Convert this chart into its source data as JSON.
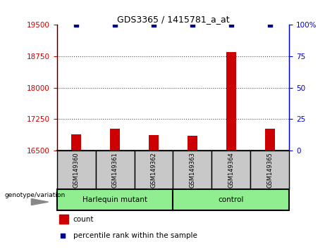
{
  "title": "GDS3365 / 1415781_a_at",
  "samples": [
    "GSM149360",
    "GSM149361",
    "GSM149362",
    "GSM149363",
    "GSM149364",
    "GSM149365"
  ],
  "counts": [
    16890,
    17020,
    16870,
    16860,
    18850,
    17020
  ],
  "percentile_ranks": [
    100,
    100,
    100,
    100,
    100,
    100
  ],
  "ylim_left": [
    16500,
    19500
  ],
  "ylim_right": [
    0,
    100
  ],
  "yticks_left": [
    16500,
    17250,
    18000,
    18750,
    19500
  ],
  "yticks_right": [
    0,
    25,
    50,
    75,
    100
  ],
  "bar_color": "#CC0000",
  "dot_color": "#00008B",
  "tick_color_left": "#CC0000",
  "tick_color_right": "#0000CC",
  "bar_width": 0.25,
  "dot_size": 25,
  "dot_marker": "s",
  "grid_color": "#000000",
  "grid_alpha": 0.7,
  "group1_label": "Harlequin mutant",
  "group2_label": "control",
  "group_color": "#90EE90",
  "sample_box_color": "#C8C8C8",
  "legend_count": "count",
  "legend_pct": "percentile rank within the sample",
  "geno_label": "genotype/variation",
  "pct_label": "100%"
}
